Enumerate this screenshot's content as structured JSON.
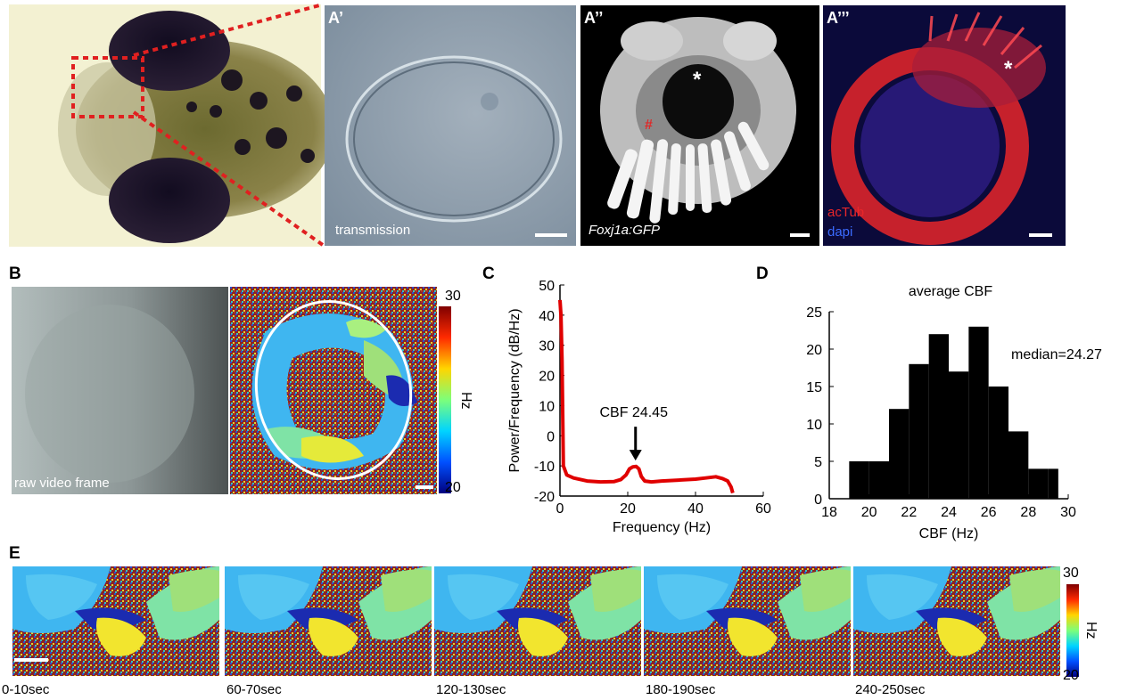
{
  "panels": {
    "A": {
      "label": "A",
      "sub_labels": [
        "A’",
        "A’’",
        "A’’’"
      ],
      "transmission_label": "transmission",
      "gfp_label": "Foxj1a:GFP",
      "red_hash": "#",
      "asterisk": "*",
      "legend_actub": "acTub",
      "legend_dapi": "dapi",
      "colors": {
        "actub": "#e8262a",
        "dapi": "#3b6bff",
        "dashed_box": "#e02020"
      }
    },
    "B": {
      "label": "B",
      "raw_label": "raw video frame",
      "colorbar": {
        "max": "30",
        "min": "20",
        "unit": "Hz"
      }
    },
    "C": {
      "label": "C"
    },
    "D": {
      "label": "D"
    },
    "E": {
      "label": "E",
      "frames": [
        "0-10sec",
        "60-70sec",
        "120-130sec",
        "180-190sec",
        "240-250sec"
      ],
      "colorbar": {
        "max": "30",
        "min": "20",
        "unit": "Hz"
      }
    }
  },
  "chart_data": [
    {
      "type": "line",
      "panel": "C",
      "xlabel": "Frequency (Hz)",
      "ylabel": "Power/Frequency (dB/Hz)",
      "xlim": [
        0,
        60
      ],
      "ylim": [
        -20,
        50
      ],
      "xticks": [
        "0",
        "20",
        "40",
        "60"
      ],
      "yticks": [
        "50",
        "40",
        "30",
        "20",
        "10",
        "0",
        "-10",
        "-20"
      ],
      "annotation": {
        "text": "CBF  24.45",
        "x": 22.3,
        "y": -10
      },
      "color": "#e00000",
      "series": [
        {
          "x": [
            0,
            0.3,
            0.6,
            1,
            2,
            4,
            8,
            12,
            16,
            18,
            19.5,
            20.5,
            21.5,
            22.5,
            23.3,
            24,
            25,
            27,
            30,
            35,
            40,
            43,
            46,
            48,
            49.5,
            50.5,
            51
          ],
          "y": [
            45,
            40,
            25,
            -10,
            -13,
            -14,
            -15,
            -15.3,
            -15.2,
            -14.5,
            -13,
            -11,
            -10.3,
            -10.2,
            -11,
            -13.5,
            -15,
            -15.3,
            -15,
            -14.7,
            -14.4,
            -14,
            -13.6,
            -14.2,
            -15,
            -17,
            -19
          ]
        }
      ]
    },
    {
      "type": "bar",
      "panel": "D",
      "title": "average CBF",
      "xlabel": "CBF (Hz)",
      "xlim": [
        18,
        30
      ],
      "ylim": [
        0,
        25
      ],
      "xticks": [
        "18",
        "20",
        "22",
        "24",
        "26",
        "28",
        "30"
      ],
      "yticks": [
        "0",
        "5",
        "10",
        "15",
        "20",
        "25"
      ],
      "annotation": "median=24.27",
      "color": "#000000",
      "bin_edges": [
        19,
        20,
        21,
        22,
        23,
        24,
        25,
        26,
        27,
        28,
        29,
        29.5
      ],
      "values": [
        5,
        5,
        12,
        18,
        22,
        17,
        23,
        15,
        9,
        4,
        4
      ]
    }
  ]
}
